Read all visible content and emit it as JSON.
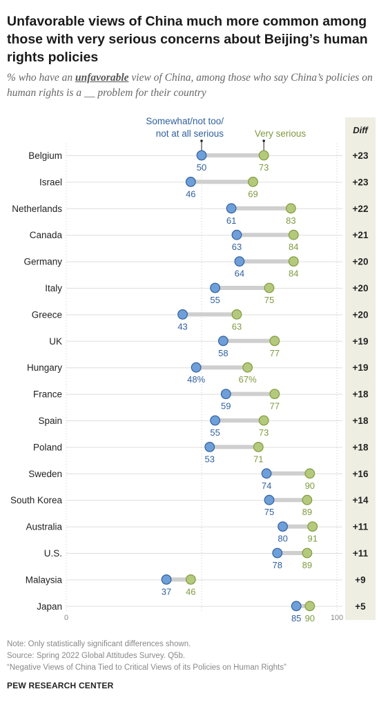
{
  "title": "Unfavorable views of China much more common among those with very serious concerns about Beijing’s human rights policies",
  "subtitle_before": "% who have an ",
  "subtitle_emphasis": "unfavorable",
  "subtitle_after": " view of China, among those who say China’s policies on human rights is a __ problem for their country",
  "chart_data": {
    "type": "dot",
    "categories": [
      "Belgium",
      "Israel",
      "Netherlands",
      "Canada",
      "Germany",
      "Italy",
      "Greece",
      "UK",
      "Hungary",
      "France",
      "Spain",
      "Poland",
      "Sweden",
      "South Korea",
      "Australia",
      "U.S.",
      "Malaysia",
      "Japan"
    ],
    "series": [
      {
        "name": "Somewhat/not too/ not at all serious",
        "name_lines": [
          "Somewhat/not too/",
          "not at all serious"
        ],
        "color": "#6f9fd8",
        "stroke": "#2f5f9e",
        "label_color": "#2f5f9e",
        "values": [
          50,
          46,
          61,
          63,
          64,
          55,
          43,
          58,
          48,
          59,
          55,
          53,
          74,
          75,
          80,
          78,
          37,
          85
        ]
      },
      {
        "name": "Very serious",
        "color": "#b5c97c",
        "stroke": "#7e9a3e",
        "label_color": "#7e9a3e",
        "values": [
          73,
          69,
          83,
          84,
          84,
          75,
          63,
          77,
          67,
          77,
          73,
          71,
          90,
          89,
          91,
          89,
          46,
          90
        ]
      }
    ],
    "diff_header": "Diff",
    "diff": [
      "+23",
      "+23",
      "+22",
      "+21",
      "+20",
      "+20",
      "+20",
      "+19",
      "+19",
      "+18",
      "+18",
      "+18",
      "+16",
      "+14",
      "+11",
      "+11",
      "+9",
      "+5"
    ],
    "percent_suffix_row": "Hungary",
    "xlim": [
      0,
      100
    ],
    "x_tick_labels": [
      "0",
      "100"
    ],
    "gridlines_at": [
      0,
      50,
      100
    ],
    "diff_panel_color": "#efeee2"
  },
  "notes": [
    "Note: Only statistically significant differences shown.",
    "Source: Spring 2022 Global Attitudes Survey. Q5b.",
    "“Negative Views of China Tied to Critical Views of its Policies on Human Rights”"
  ],
  "source_org": "PEW RESEARCH CENTER"
}
